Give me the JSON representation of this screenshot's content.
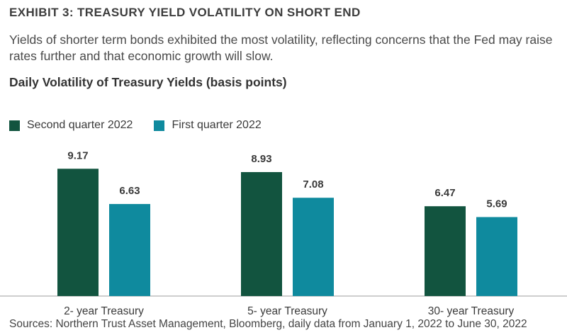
{
  "header": {
    "exhibit_title": "EXHIBIT 3: TREASURY YIELD VOLATILITY ON SHORT END",
    "subtitle": "Yields of shorter term bonds exhibited the most volatility, reflecting concerns that the Fed may raise rates further and that economic growth will slow.",
    "chart_heading": "Daily Volatility of Treasury Yields (basis points)"
  },
  "footer": {
    "source": "Sources: Northern Trust Asset Management, Bloomberg, daily data from January 1, 2022 to June 30, 2022"
  },
  "colors": {
    "second_quarter": "#12543f",
    "first_quarter": "#0f8a9e",
    "axis": "#b0b0b0"
  },
  "chart_data": {
    "type": "bar",
    "title": "Daily Volatility of Treasury Yields (basis points)",
    "categories": [
      "2- year Treasury",
      "5- year Treasury",
      "30- year Treasury"
    ],
    "series": [
      {
        "name": "Second quarter 2022",
        "values": [
          9.17,
          8.93,
          6.47
        ]
      },
      {
        "name": "First quarter 2022",
        "values": [
          6.63,
          7.08,
          5.69
        ]
      }
    ],
    "ylim": [
      0,
      10
    ],
    "grid": false,
    "legend_position": "top-left",
    "data_labels": true
  }
}
